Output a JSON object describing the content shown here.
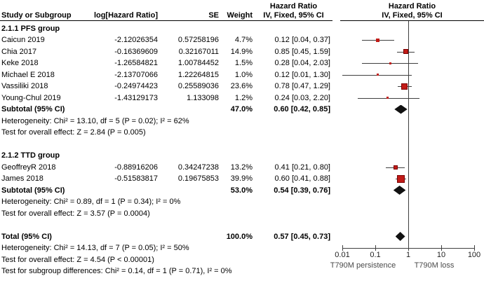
{
  "chart_data": {
    "type": "scatter",
    "subtype": "forest-plot-meta-analysis",
    "x_scale": "log10",
    "xlim": [
      0.01,
      100
    ],
    "x_ticks": [
      0.01,
      0.1,
      1,
      10,
      100
    ],
    "x_tick_labels": [
      "0.01",
      "0.1",
      "1",
      "10",
      "100"
    ],
    "null_line_value": 1,
    "axis_left_label": "T790M persistence",
    "axis_right_label": "T790M loss",
    "columns": {
      "study": "Study or Subgroup",
      "log_hr": "log[Hazard Ratio]",
      "se": "SE",
      "weight": "Weight",
      "hr_title": "Hazard Ratio",
      "hr_sub": "IV, Fixed, 95% CI"
    },
    "rows": [
      {
        "type": "group",
        "study": "2.1.1 PFS group"
      },
      {
        "type": "study",
        "study": "Caicun 2019",
        "log_hr": "-2.12026354",
        "se": "0.57258196",
        "weight": "4.7%",
        "ci": "0.12 [0.04, 0.37]",
        "hr": 0.12,
        "lo": 0.04,
        "hi": 0.37,
        "size": 5
      },
      {
        "type": "study",
        "study": "Chia 2017",
        "log_hr": "-0.16369609",
        "se": "0.32167011",
        "weight": "14.9%",
        "ci": "0.85 [0.45, 1.59]",
        "hr": 0.85,
        "lo": 0.45,
        "hi": 1.59,
        "size": 7
      },
      {
        "type": "study",
        "study": "Keke 2018",
        "log_hr": "-1.26584821",
        "se": "1.00784452",
        "weight": "1.5%",
        "ci": "0.28 [0.04, 2.03]",
        "hr": 0.28,
        "lo": 0.04,
        "hi": 2.03,
        "size": 3
      },
      {
        "type": "study",
        "study": "Michael E 2018",
        "log_hr": "-2.13707066",
        "se": "1.22264815",
        "weight": "1.0%",
        "ci": "0.12 [0.01, 1.30]",
        "hr": 0.12,
        "lo": 0.01,
        "hi": 1.3,
        "size": 3
      },
      {
        "type": "study",
        "study": "Vassiliki 2018",
        "log_hr": "-0.24974423",
        "se": "0.25589036",
        "weight": "23.6%",
        "ci": "0.78 [0.47, 1.29]",
        "hr": 0.78,
        "lo": 0.47,
        "hi": 1.29,
        "size": 9
      },
      {
        "type": "study",
        "study": "Young-Chul 2019",
        "log_hr": "-1.43129173",
        "se": "1.133098",
        "weight": "1.2%",
        "ci": "0.24 [0.03, 2.20]",
        "hr": 0.24,
        "lo": 0.03,
        "hi": 2.2,
        "size": 3
      },
      {
        "type": "subtotal",
        "study": "Subtotal (95% CI)",
        "weight": "47.0%",
        "ci": "0.60 [0.42, 0.85]",
        "hr": 0.6,
        "lo": 0.42,
        "hi": 0.85
      },
      {
        "type": "note",
        "study": "Heterogeneity: Chi² = 13.10, df = 5 (P = 0.02); I² = 62%"
      },
      {
        "type": "note",
        "study": "Test for overall effect: Z = 2.84 (P = 0.005)"
      },
      {
        "type": "blank",
        "study": ""
      },
      {
        "type": "group",
        "study": "2.1.2 TTD group"
      },
      {
        "type": "study",
        "study": "GeoffreyR 2018",
        "log_hr": "-0.88916206",
        "se": "0.34247238",
        "weight": "13.2%",
        "ci": "0.41 [0.21, 0.80]",
        "hr": 0.41,
        "lo": 0.21,
        "hi": 0.8,
        "size": 6
      },
      {
        "type": "study",
        "study": "James 2018",
        "log_hr": "-0.51583817",
        "se": "0.19675853",
        "weight": "39.9%",
        "ci": "0.60 [0.41, 0.88]",
        "hr": 0.6,
        "lo": 0.41,
        "hi": 0.88,
        "size": 11
      },
      {
        "type": "subtotal",
        "study": "Subtotal (95% CI)",
        "weight": "53.0%",
        "ci": "0.54 [0.39, 0.76]",
        "hr": 0.54,
        "lo": 0.39,
        "hi": 0.76
      },
      {
        "type": "note",
        "study": "Heterogeneity: Chi² = 0.89, df = 1 (P = 0.34); I² = 0%"
      },
      {
        "type": "note",
        "study": "Test for overall effect: Z = 3.57 (P = 0.0004)"
      },
      {
        "type": "blank",
        "study": ""
      },
      {
        "type": "total",
        "study": "Total (95% CI)",
        "weight": "100.0%",
        "ci": "0.57 [0.45, 0.73]",
        "hr": 0.57,
        "lo": 0.45,
        "hi": 0.73
      },
      {
        "type": "note",
        "study": "Heterogeneity: Chi² = 14.13, df = 7 (P = 0.05); I² = 50%"
      },
      {
        "type": "note",
        "study": "Test for overall effect: Z = 4.54 (P < 0.00001)"
      },
      {
        "type": "note",
        "study": "Test for subgroup differences: Chi² = 0.14, df = 1 (P = 0.71), I² = 0%"
      }
    ],
    "colors": {
      "marker": "#C11B17",
      "marker_border": "#7A0000",
      "diamond": "#111111",
      "line": "#3F3F3F",
      "text": "#000000"
    }
  }
}
